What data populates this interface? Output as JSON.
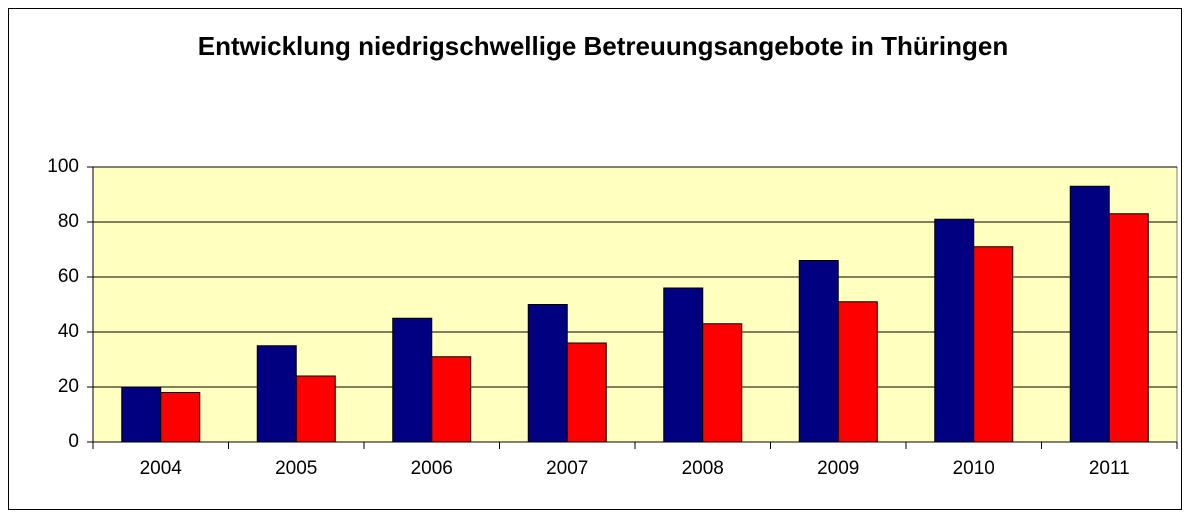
{
  "chart_data": {
    "type": "bar",
    "title": "Entwicklung niedrigschwellige Betreuungsangebote in Thüringen",
    "categories": [
      "2004",
      "2005",
      "2006",
      "2007",
      "2008",
      "2009",
      "2010",
      "2011"
    ],
    "series": [
      {
        "color": "#000080",
        "values": [
          20,
          35,
          45,
          50,
          56,
          66,
          81,
          93
        ]
      },
      {
        "color": "#ff0000",
        "values": [
          18,
          24,
          31,
          36,
          43,
          51,
          71,
          83
        ]
      }
    ],
    "ylim": [
      0,
      100
    ],
    "yticks": [
      0,
      20,
      40,
      60,
      80,
      100
    ],
    "grid": true,
    "plot_background": "#ffffc0"
  }
}
